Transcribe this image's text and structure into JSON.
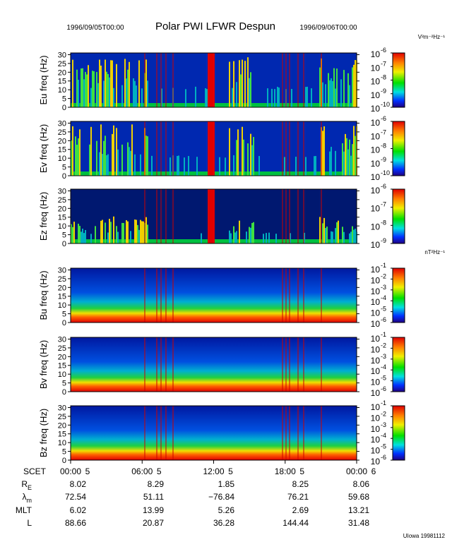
{
  "header": {
    "start": "1996/09/05T00:00",
    "title": "Polar PWI LFWR Despun",
    "end": "1996/09/06T00:00"
  },
  "freq_axis": {
    "ylim": [
      0,
      31
    ],
    "yticks": [
      0,
      5,
      10,
      15,
      20,
      25,
      30
    ]
  },
  "panels": [
    {
      "label": "Eu freq (Hz)",
      "kind": "E",
      "unit": "V²m⁻²Hz⁻¹",
      "cbar": [
        {
          "base": "10",
          "exp": "-6"
        },
        {
          "base": "10",
          "exp": "-7"
        },
        {
          "base": "10",
          "exp": "-8"
        },
        {
          "base": "10",
          "exp": "-9"
        },
        {
          "base": "10",
          "exp": "-10"
        }
      ]
    },
    {
      "label": "Ev freq (Hz)",
      "kind": "E",
      "cbar": [
        {
          "base": "10",
          "exp": "-6"
        },
        {
          "base": "10",
          "exp": "-7"
        },
        {
          "base": "10",
          "exp": "-8"
        },
        {
          "base": "10",
          "exp": "-9"
        },
        {
          "base": "10",
          "exp": "-10"
        }
      ]
    },
    {
      "label": "Ez freq (Hz)",
      "kind": "E",
      "cbar": [
        {
          "base": "10",
          "exp": "-6"
        },
        {
          "base": "10",
          "exp": "-7"
        },
        {
          "base": "10",
          "exp": "-8"
        },
        {
          "base": "10",
          "exp": "-9"
        }
      ]
    },
    {
      "label": "Bu freq (Hz)",
      "kind": "B",
      "unit": "nT²Hz⁻¹",
      "cbar": [
        {
          "base": "10",
          "exp": "-1"
        },
        {
          "base": "10",
          "exp": "-2"
        },
        {
          "base": "10",
          "exp": "-3"
        },
        {
          "base": "10",
          "exp": "-4"
        },
        {
          "base": "10",
          "exp": "-5"
        },
        {
          "base": "10",
          "exp": "-6"
        }
      ]
    },
    {
      "label": "Bv freq (Hz)",
      "kind": "B",
      "cbar": [
        {
          "base": "10",
          "exp": "-1"
        },
        {
          "base": "10",
          "exp": "-2"
        },
        {
          "base": "10",
          "exp": "-3"
        },
        {
          "base": "10",
          "exp": "-4"
        },
        {
          "base": "10",
          "exp": "-5"
        },
        {
          "base": "10",
          "exp": "-6"
        }
      ]
    },
    {
      "label": "Bz freq (Hz)",
      "kind": "B",
      "cbar": [
        {
          "base": "10",
          "exp": "-1"
        },
        {
          "base": "10",
          "exp": "-2"
        },
        {
          "base": "10",
          "exp": "-3"
        },
        {
          "base": "10",
          "exp": "-4"
        },
        {
          "base": "10",
          "exp": "-5"
        },
        {
          "base": "10",
          "exp": "-6"
        }
      ]
    }
  ],
  "time_axis": {
    "label": "SCET",
    "ticks": [
      {
        "time": "00:00",
        "day": "5"
      },
      {
        "time": "06:00",
        "day": "5"
      },
      {
        "time": "12:00",
        "day": "5"
      },
      {
        "time": "18:00",
        "day": "5"
      },
      {
        "time": "00:00",
        "day": "6"
      }
    ]
  },
  "orbit": [
    {
      "main": "R",
      "sub": "E",
      "values": [
        "8.02",
        "8.29",
        "1.85",
        "8.25",
        "8.06"
      ]
    },
    {
      "main": "λ",
      "sub": "m",
      "values": [
        "72.54",
        "51.11",
        "−76.84",
        "76.21",
        "59.68"
      ]
    },
    {
      "main": "MLT",
      "values": [
        "6.02",
        "13.99",
        "5.26",
        "2.69",
        "13.21"
      ]
    },
    {
      "main": "L",
      "values": [
        "88.66",
        "20.87",
        "36.28",
        "144.44",
        "31.48"
      ]
    }
  ],
  "footer": "UIowa 19981112"
}
